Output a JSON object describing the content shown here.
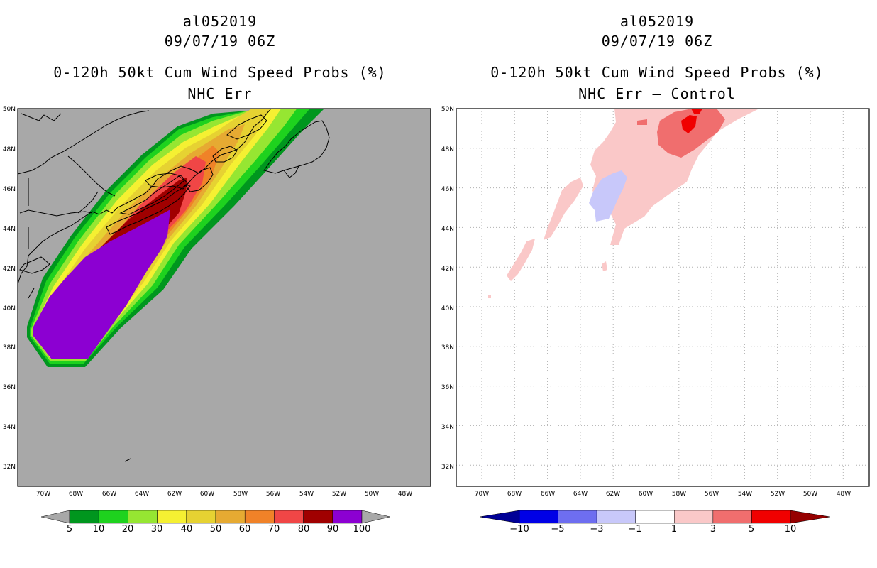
{
  "panels": [
    {
      "storm_id": "al052019",
      "datetime": "09/07/19 06Z",
      "product": "0-120h 50kt Cum Wind Speed Probs (%)",
      "subtitle": "NHC Err",
      "colorbar": {
        "labels": [
          "5",
          "10",
          "20",
          "30",
          "40",
          "50",
          "60",
          "70",
          "80",
          "90",
          "100"
        ],
        "colors": [
          "#00961e",
          "#1ed21e",
          "#96e632",
          "#f5f032",
          "#e6d232",
          "#e6aa32",
          "#f08228",
          "#f04646",
          "#a00000",
          "#8c00d2"
        ],
        "under_color": "#a8a8a8",
        "over_color": "#a8a8a8"
      }
    },
    {
      "storm_id": "al052019",
      "datetime": "09/07/19 06Z",
      "product": "0-120h 50kt Cum Wind Speed Probs (%)",
      "subtitle": "NHC Err – Control",
      "colorbar": {
        "labels": [
          "−10",
          "−5",
          "−3",
          "−1",
          "1",
          "3",
          "5",
          "10"
        ],
        "colors": [
          "#0000e6",
          "#6e6ef0",
          "#c8c8fa",
          "#ffffff",
          "#fac8c8",
          "#f06e6e",
          "#f00000"
        ],
        "under_color": "#000096",
        "over_color": "#960000"
      }
    }
  ],
  "axes": {
    "lat_labels": [
      "50N",
      "48N",
      "46N",
      "44N",
      "42N",
      "40N",
      "38N",
      "36N",
      "34N",
      "32N"
    ],
    "lon_labels": [
      "70W",
      "68W",
      "66W",
      "64W",
      "62W",
      "60W",
      "58W",
      "56W",
      "54W",
      "52W",
      "50W",
      "48W"
    ]
  },
  "colors": {
    "ocean_left": "#a8a8a8",
    "grid_dots": "#b0b0b0"
  }
}
